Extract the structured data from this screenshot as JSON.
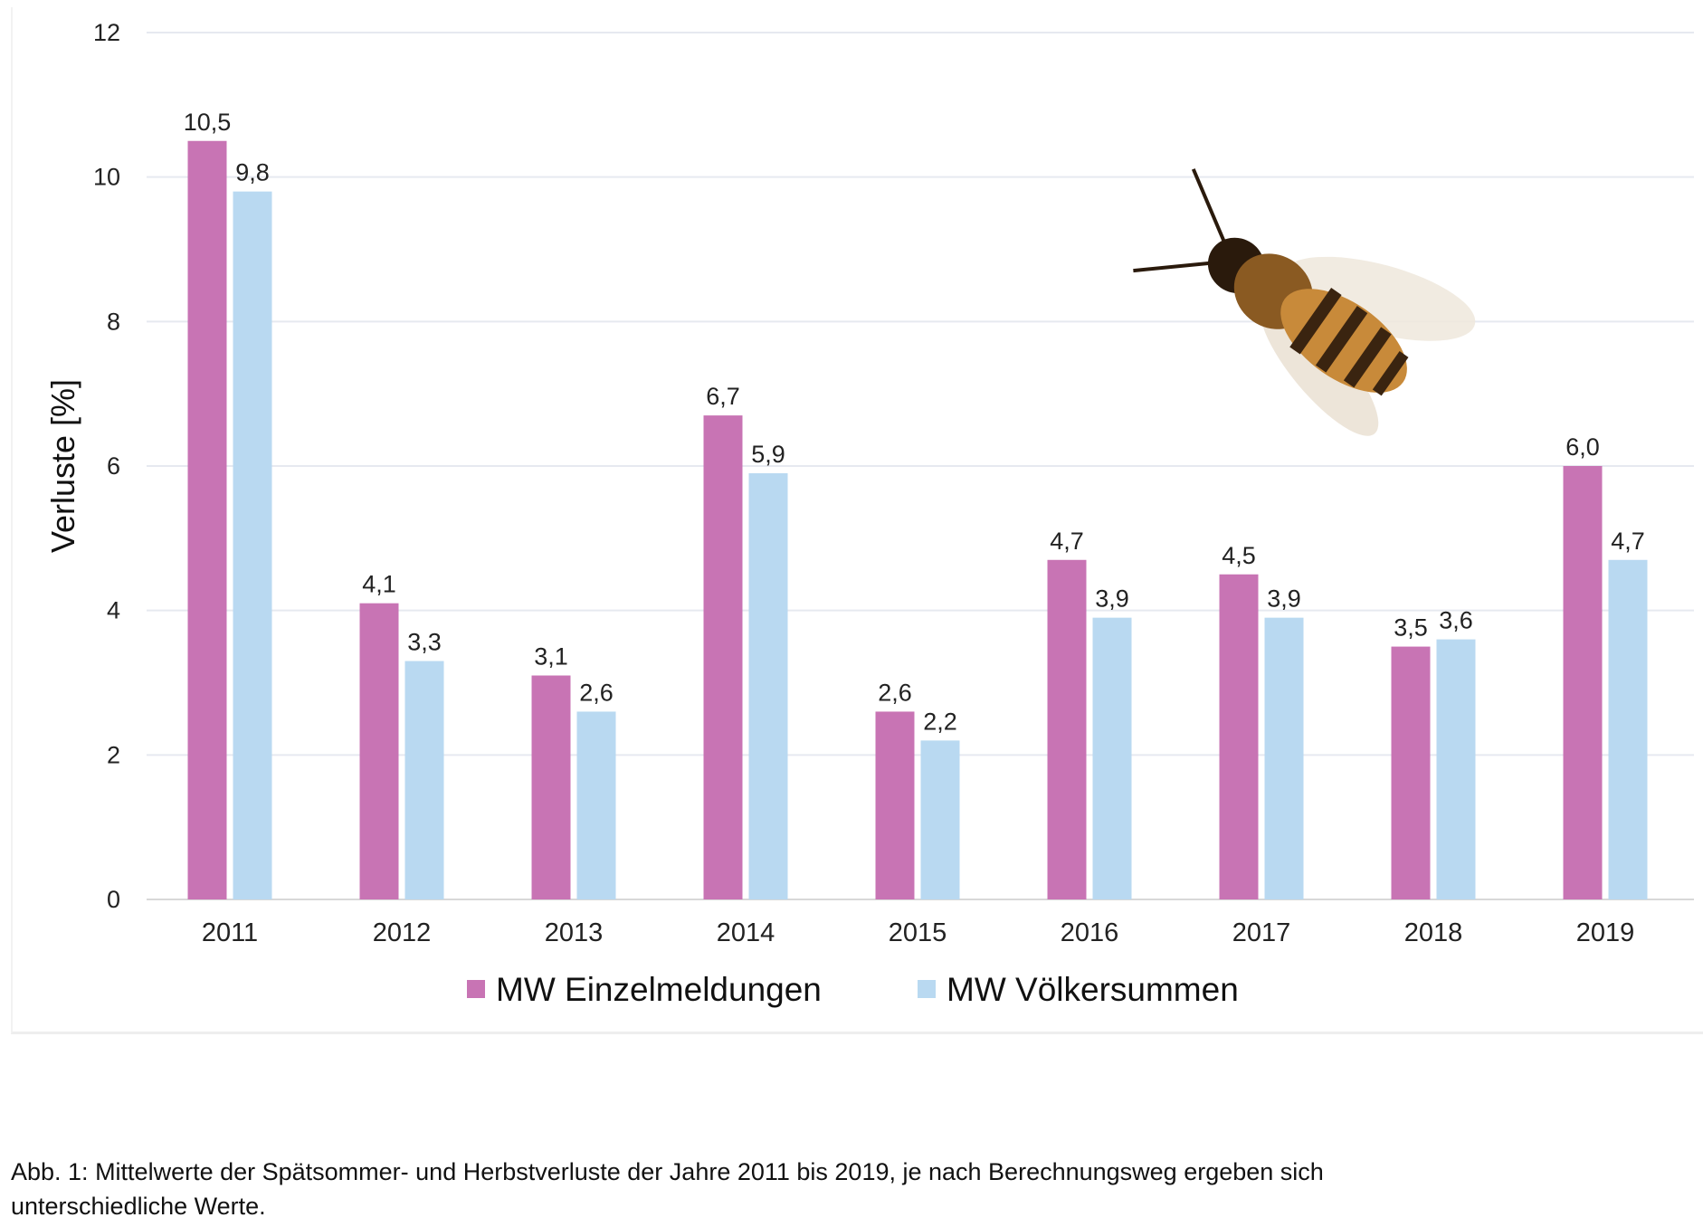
{
  "chart_data": {
    "type": "bar",
    "ylabel": "Verluste [%]",
    "xlabel": "",
    "ylim": [
      0,
      12
    ],
    "yticks": [
      0,
      2,
      4,
      6,
      8,
      10,
      12
    ],
    "grid": true,
    "legend_position": "bottom",
    "categories": [
      "2011",
      "2012",
      "2013",
      "2014",
      "2015",
      "2016",
      "2017",
      "2018",
      "2019"
    ],
    "series": [
      {
        "name": "MW Einzelmeldungen",
        "color": "#c874b4",
        "values": [
          10.5,
          4.1,
          3.1,
          6.7,
          2.6,
          4.7,
          4.5,
          3.5,
          6.0
        ],
        "labels": [
          "10,5",
          "4,1",
          "3,1",
          "6,7",
          "2,6",
          "4,7",
          "4,5",
          "3,5",
          "6,0"
        ]
      },
      {
        "name": "MW Völkersummen",
        "color": "#b9d9f1",
        "values": [
          9.8,
          3.3,
          2.6,
          5.9,
          2.2,
          3.9,
          3.9,
          3.6,
          4.7
        ],
        "labels": [
          "9,8",
          "3,3",
          "2,6",
          "5,9",
          "2,2",
          "3,9",
          "3,9",
          "3,6",
          "4,7"
        ]
      }
    ],
    "decoration": "bee-image"
  },
  "caption": {
    "line1": "Abb. 1: Mittelwerte der Spätsommer- und Herbstverluste der Jahre 2011 bis 2019, je nach Berechnungsweg ergeben sich",
    "line2": "unterschiedliche Werte."
  }
}
